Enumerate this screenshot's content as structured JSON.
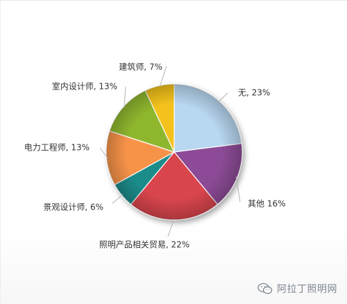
{
  "chart_data": {
    "type": "pie",
    "title": "",
    "slices": [
      {
        "label": "无",
        "value": 23,
        "display": "无, 23%",
        "color": "#b8d7f1"
      },
      {
        "label": "其他",
        "value": 16,
        "display": "其他 16%",
        "color": "#8d4c97"
      },
      {
        "label": "照明产品相关贸易",
        "value": 22,
        "display": "照明产品相关贸易, 22%",
        "color": "#d8454e"
      },
      {
        "label": "景观设计师",
        "value": 6,
        "display": "景观设计师, 6%",
        "color": "#1f8c8b"
      },
      {
        "label": "电力工程师",
        "value": 13,
        "display": "电力工程师, 13%",
        "color": "#f7934a"
      },
      {
        "label": "室内设计师",
        "value": 13,
        "display": "室内设计师, 13%",
        "color": "#8fb72d"
      },
      {
        "label": "建筑师",
        "value": 7,
        "display": "建筑师, 7%",
        "color": "#f3c21c"
      }
    ],
    "start_angle_deg": 0,
    "direction": "clockwise-from-12-oclock",
    "legend": "none, labels with leader lines"
  },
  "watermark": {
    "text": "阿拉丁照明网",
    "icon": "wechat-icon"
  }
}
